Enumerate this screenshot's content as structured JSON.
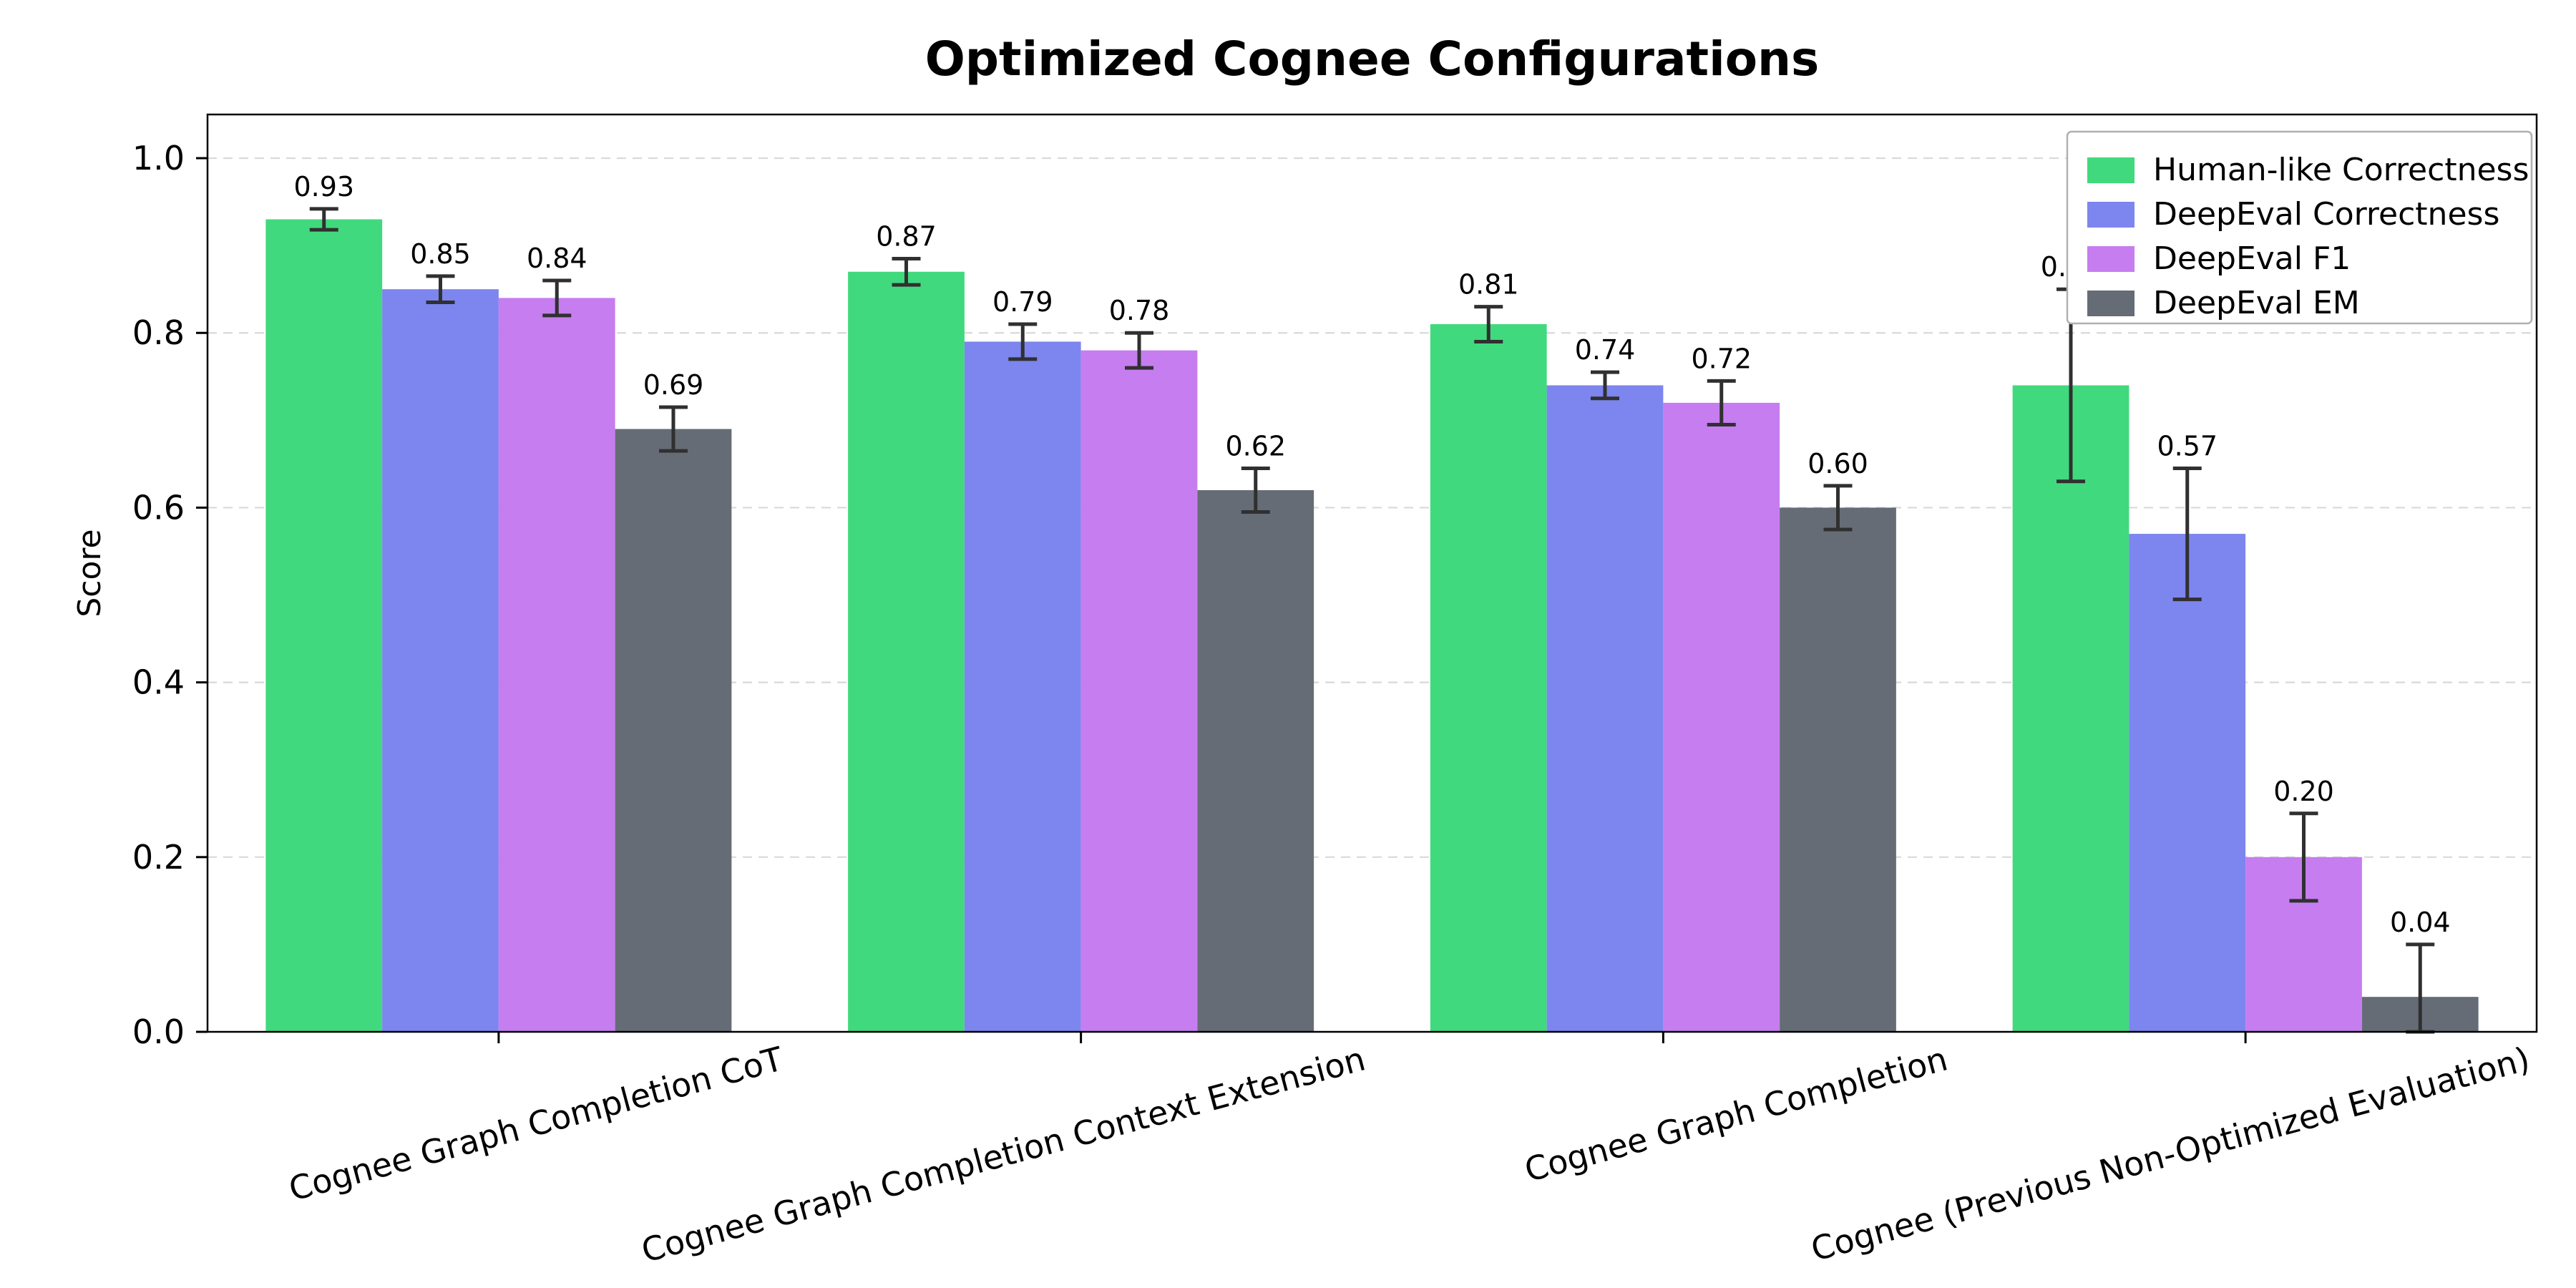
{
  "chart_data": {
    "type": "bar",
    "title": "Optimized Cognee Configurations",
    "xlabel": "",
    "ylabel": "Score",
    "ylim": [
      0,
      1.05
    ],
    "yticks": [
      0.0,
      0.2,
      0.4,
      0.6,
      0.8,
      1.0
    ],
    "grid": "horizontal-dashed",
    "legend_position": "upper-right",
    "categories": [
      "Cognee Graph Completion CoT",
      "Cognee Graph Completion Context Extension",
      "Cognee Graph Completion",
      "Cognee (Previous Non-Optimized Evaluation)"
    ],
    "series": [
      {
        "name": "Human-like Correctness",
        "color": "#41d97d",
        "values": [
          0.93,
          0.87,
          0.81,
          0.74
        ],
        "errors": [
          0.012,
          0.015,
          0.02,
          0.11
        ]
      },
      {
        "name": "DeepEval Correctness",
        "color": "#7d85ee",
        "values": [
          0.85,
          0.79,
          0.74,
          0.57
        ],
        "errors": [
          0.015,
          0.02,
          0.015,
          0.075
        ]
      },
      {
        "name": "DeepEval F1",
        "color": "#c67df0",
        "values": [
          0.84,
          0.78,
          0.72,
          0.2
        ],
        "errors": [
          0.02,
          0.02,
          0.025,
          0.05
        ]
      },
      {
        "name": "DeepEval EM",
        "color": "#666c76",
        "values": [
          0.69,
          0.62,
          0.6,
          0.04
        ],
        "errors": [
          0.025,
          0.025,
          0.025,
          0.06
        ]
      }
    ],
    "colors": {
      "grid": "#d9d9d9",
      "axis": "#000000",
      "error_bar": "#303030",
      "legend_border": "#b0b0b0"
    }
  }
}
